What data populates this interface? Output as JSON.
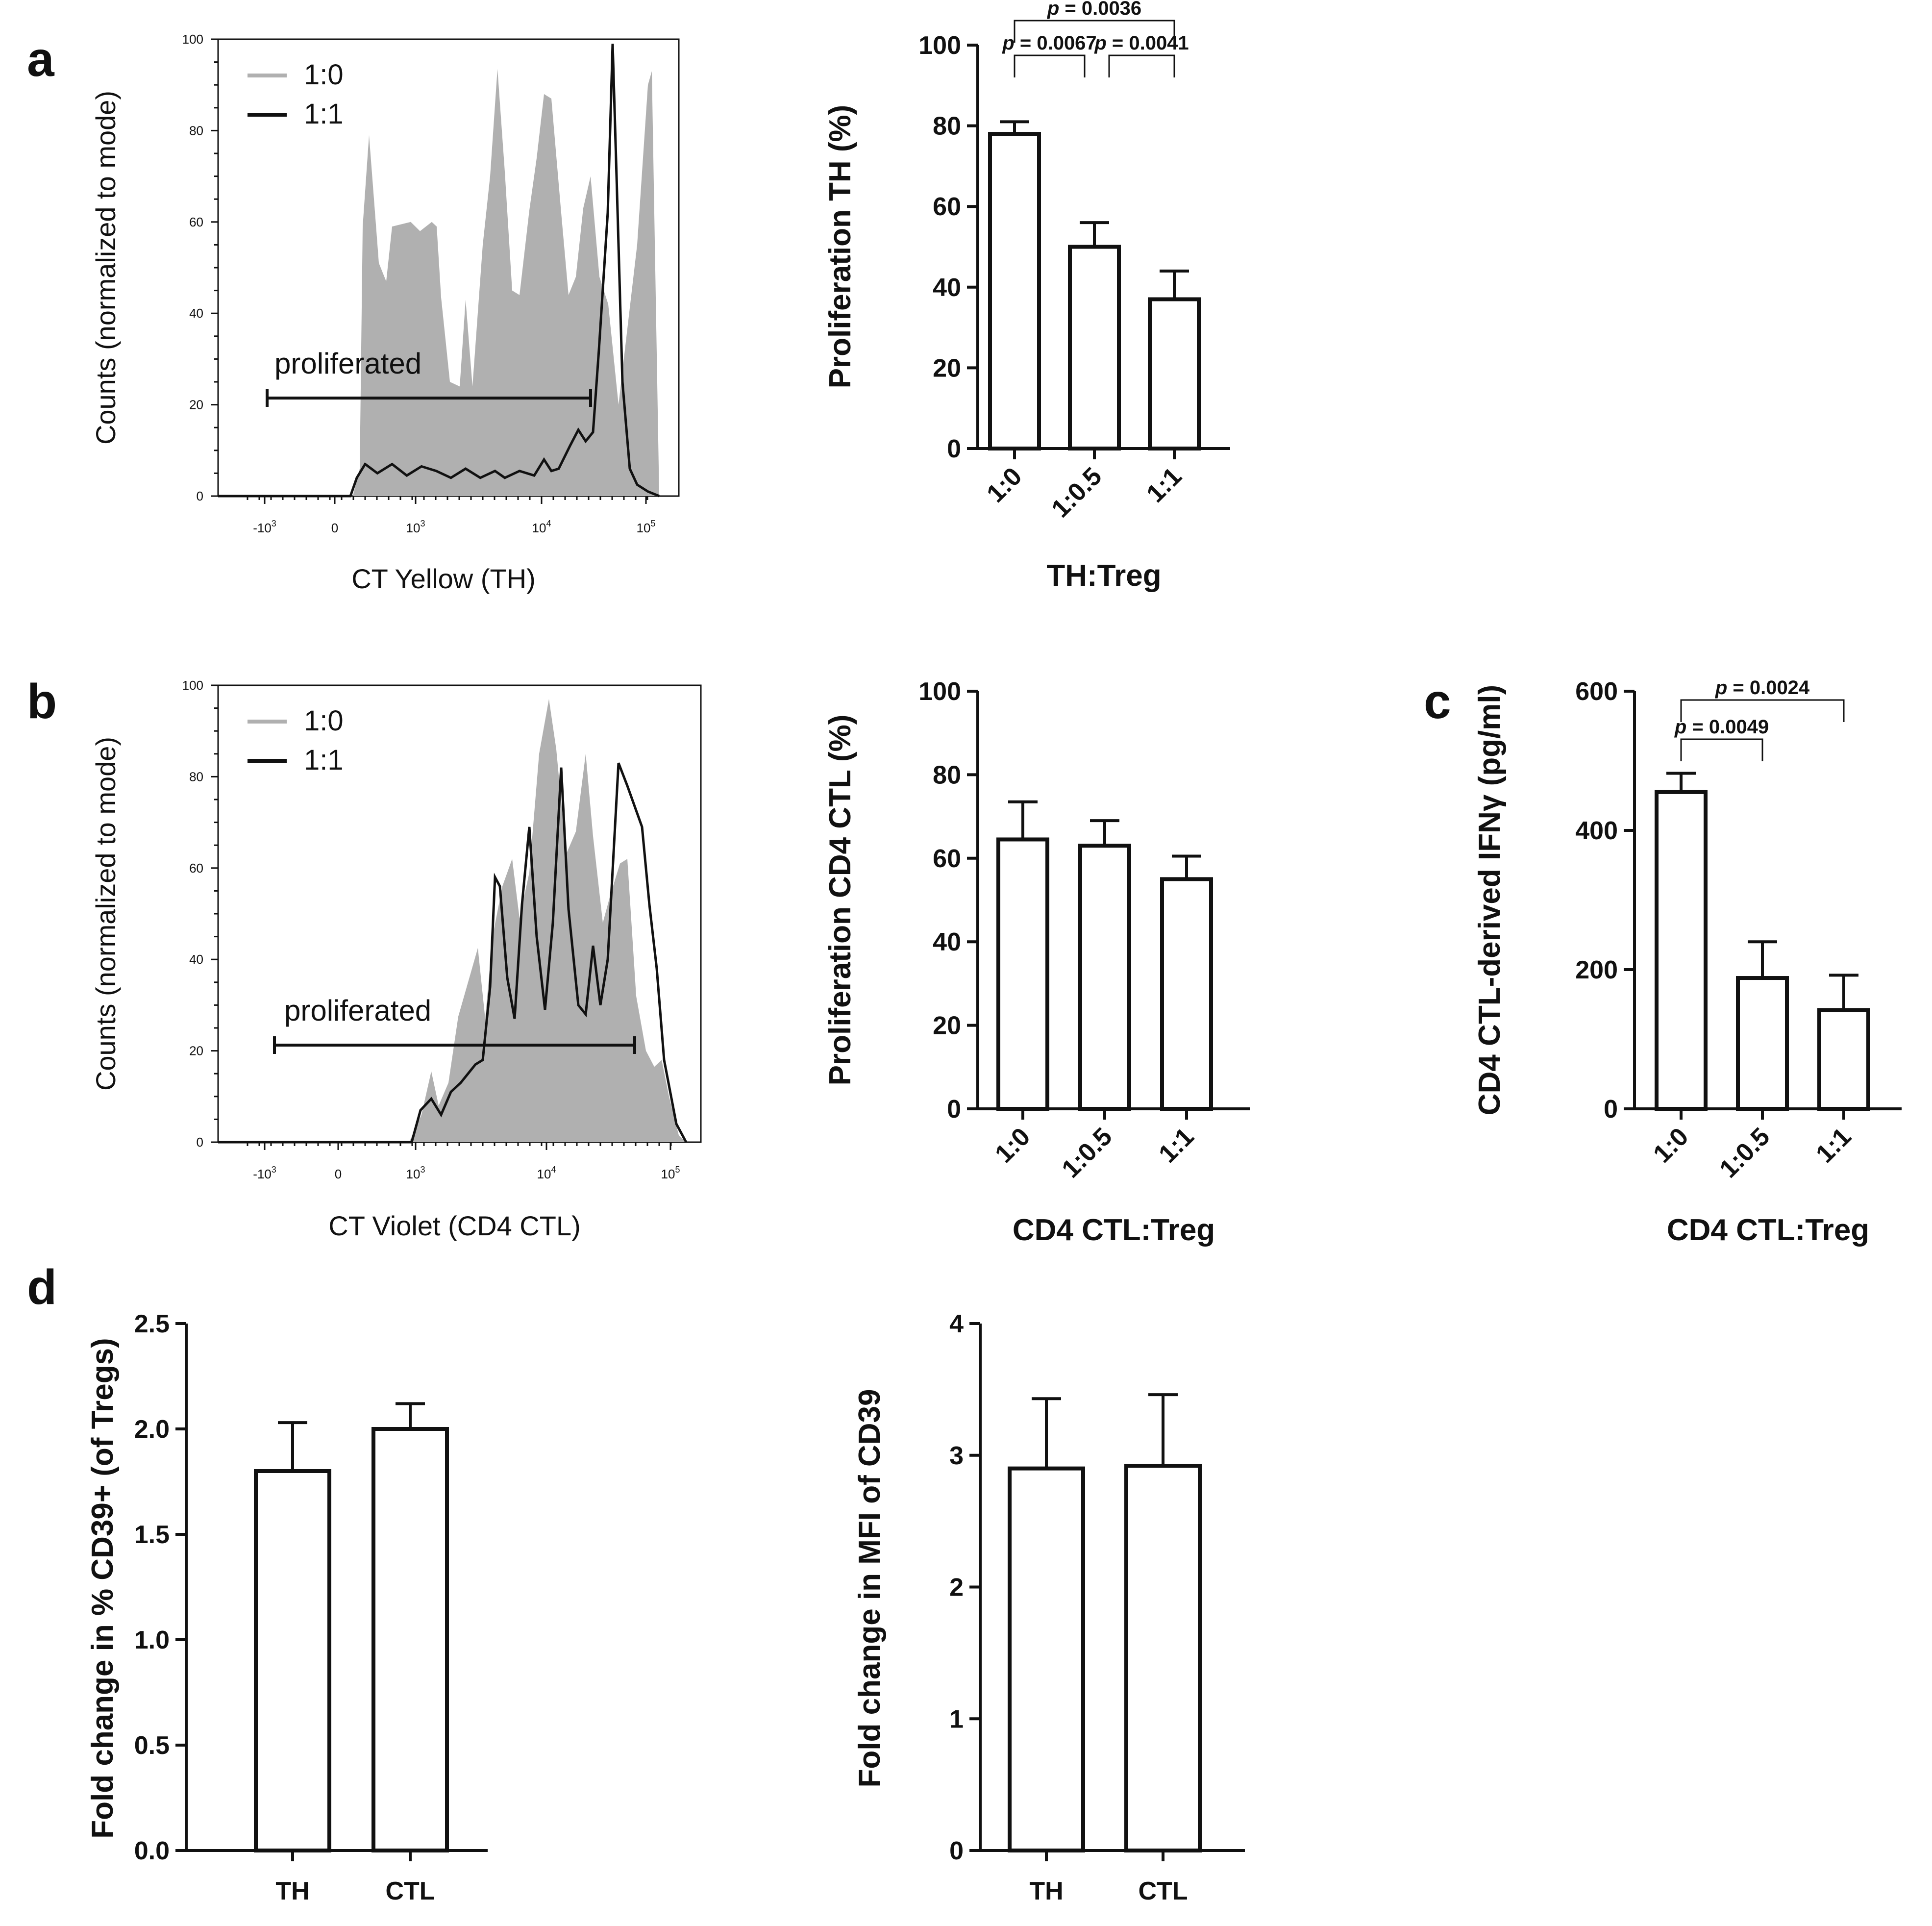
{
  "figure_labels": {
    "a": "a",
    "b": "b",
    "c": "c",
    "d": "d"
  },
  "chart_data": [
    {
      "id": "a_hist",
      "type": "area",
      "panel": "a",
      "xlabel": "CT Yellow (TH)",
      "ylabel": "Counts (normalized to mode)",
      "ylim": [
        0,
        100
      ],
      "yticks": [
        "0",
        "20",
        "40",
        "60",
        "80",
        "100"
      ],
      "xticks": [
        {
          "base": "-10",
          "exp": "3"
        },
        {
          "base": "0",
          "exp": ""
        },
        {
          "base": "10",
          "exp": "3"
        },
        {
          "base": "10",
          "exp": "4"
        },
        {
          "base": "10",
          "exp": "5"
        }
      ],
      "legend": [
        "1:0",
        "1:1"
      ],
      "gate_label": "proliferated",
      "series_desc": [
        {
          "name": "1:0",
          "color": "#b0b0b0",
          "style": "filled gray"
        },
        {
          "name": "1:1",
          "color": "#111111",
          "style": "black line"
        }
      ]
    },
    {
      "id": "a_bar",
      "type": "bar",
      "panel": "a",
      "categories": [
        "1:0",
        "1:0.5",
        "1:1"
      ],
      "values": [
        78,
        50,
        37
      ],
      "errors": [
        3,
        6,
        7
      ],
      "ylim": [
        0,
        100
      ],
      "yticks": [
        "0",
        "20",
        "40",
        "60",
        "80",
        "100"
      ],
      "ylabel": "Proliferation TH (%)",
      "xlabel": "TH:Treg",
      "significance": [
        {
          "from": 0,
          "to": 2,
          "p_label": "p",
          "p_value": "= 0.0036"
        },
        {
          "from": 0,
          "to": 1,
          "p_label": "p",
          "p_value": "= 0.0067"
        },
        {
          "from": 1,
          "to": 2,
          "p_label": "p",
          "p_value": "= 0.0041"
        }
      ]
    },
    {
      "id": "b_hist",
      "type": "area",
      "panel": "b",
      "xlabel": "CT Violet (CD4 CTL)",
      "ylabel": "Counts (normalized to mode)",
      "ylim": [
        0,
        100
      ],
      "yticks": [
        "0",
        "20",
        "40",
        "60",
        "80",
        "100"
      ],
      "xticks": [
        {
          "base": "-10",
          "exp": "3"
        },
        {
          "base": "0",
          "exp": ""
        },
        {
          "base": "10",
          "exp": "3"
        },
        {
          "base": "10",
          "exp": "4"
        },
        {
          "base": "10",
          "exp": "5"
        }
      ],
      "legend": [
        "1:0",
        "1:1"
      ],
      "gate_label": "proliferated",
      "series_desc": [
        {
          "name": "1:0",
          "color": "#b0b0b0",
          "style": "filled gray"
        },
        {
          "name": "1:1",
          "color": "#111111",
          "style": "black line"
        }
      ]
    },
    {
      "id": "b_bar",
      "type": "bar",
      "panel": "b",
      "categories": [
        "1:0",
        "1:0.5",
        "1:1"
      ],
      "values": [
        64.5,
        63,
        55
      ],
      "errors": [
        9,
        6,
        5.5
      ],
      "ylim": [
        0,
        100
      ],
      "yticks": [
        "0",
        "20",
        "40",
        "60",
        "80",
        "100"
      ],
      "ylabel": "Proliferation CD4 CTL (%)",
      "xlabel": "CD4 CTL:Treg",
      "significance": []
    },
    {
      "id": "c_bar",
      "type": "bar",
      "panel": "c",
      "categories": [
        "1:0",
        "1:0.5",
        "1:1"
      ],
      "values": [
        455,
        188,
        142
      ],
      "errors": [
        27,
        52,
        50
      ],
      "ylim": [
        0,
        600
      ],
      "yticks": [
        "0",
        "200",
        "400",
        "600"
      ],
      "ylabel": "CD4 CTL-derived IFNγ (pg/ml)",
      "xlabel": "CD4 CTL:Treg",
      "significance": [
        {
          "from": 0,
          "to": 2,
          "p_label": "p",
          "p_value": "= 0.0024"
        },
        {
          "from": 0,
          "to": 1,
          "p_label": "p",
          "p_value": "= 0.0049"
        }
      ]
    },
    {
      "id": "d_bar1",
      "type": "bar",
      "panel": "d",
      "categories": [
        "TH",
        "CTL"
      ],
      "values": [
        1.8,
        2.0
      ],
      "errors": [
        0.23,
        0.12
      ],
      "ylim": [
        0,
        2.5
      ],
      "yticks": [
        "0.0",
        "0.5",
        "1.0",
        "1.5",
        "2.0",
        "2.5"
      ],
      "ylabel": "Fold change in % CD39+ (of Tregs)",
      "xlabel": "",
      "significance": []
    },
    {
      "id": "d_bar2",
      "type": "bar",
      "panel": "d",
      "categories": [
        "TH",
        "CTL"
      ],
      "values": [
        2.9,
        2.92
      ],
      "errors": [
        0.53,
        0.54
      ],
      "ylim": [
        0,
        4
      ],
      "yticks": [
        "0",
        "1",
        "2",
        "3",
        "4"
      ],
      "ylabel": "Fold change in MFI of CD39",
      "xlabel": "",
      "significance": []
    }
  ]
}
